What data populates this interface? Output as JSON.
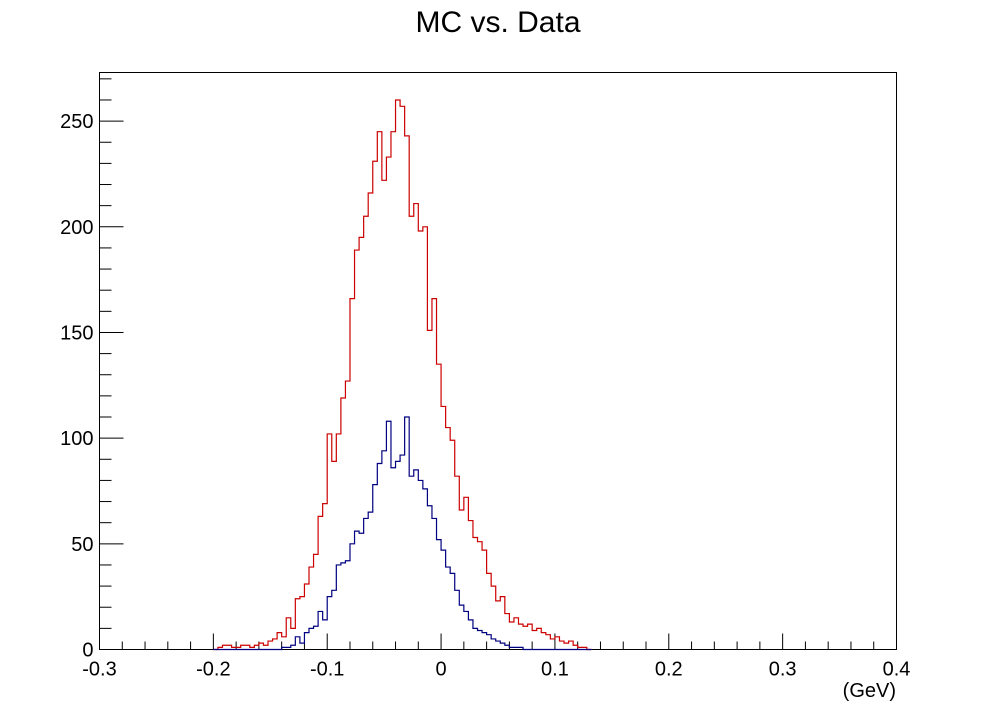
{
  "chart_data": {
    "type": "histogram",
    "title": "MC vs. Data",
    "xlabel": "(GeV)",
    "ylabel": "",
    "xlim": [
      -0.3,
      0.4
    ],
    "ylim": [
      0,
      273
    ],
    "x_ticks": [
      -0.3,
      -0.2,
      -0.1,
      0,
      0.1,
      0.2,
      0.3,
      0.4
    ],
    "x_tick_labels": [
      "-0.3",
      "-0.2",
      "-0.1",
      "0",
      "0.1",
      "0.2",
      "0.3",
      "0.4"
    ],
    "y_ticks": [
      0,
      50,
      100,
      150,
      200,
      250
    ],
    "y_tick_labels": [
      "0",
      "50",
      "100",
      "150",
      "200",
      "250"
    ],
    "grid": false,
    "legend": "none",
    "bin_width": 0.004,
    "series": [
      {
        "color": "#cc0000",
        "bin_edges_start": -0.2,
        "values": [
          0,
          1,
          2,
          2,
          1,
          1,
          2,
          2,
          1,
          2,
          3,
          2,
          4,
          5,
          8,
          6,
          15,
          10,
          24,
          25,
          31,
          39,
          45,
          63,
          69,
          102,
          89,
          102,
          119,
          127,
          166,
          189,
          195,
          205,
          216,
          231,
          245,
          222,
          233,
          245,
          260,
          257,
          243,
          205,
          211,
          198,
          200,
          151,
          166,
          135,
          115,
          105,
          99,
          82,
          66,
          72,
          61,
          53,
          51,
          47,
          36,
          30,
          23,
          25,
          17,
          13,
          15,
          12,
          11,
          12,
          9,
          10,
          8,
          7,
          5,
          6,
          4,
          3,
          4,
          2,
          1,
          1,
          0
        ],
        "legend_label": ""
      },
      {
        "color": "#000080",
        "bin_edges_start": -0.2,
        "values": [
          0,
          0,
          0,
          0,
          0,
          0,
          0,
          0,
          0,
          0,
          0,
          0,
          0,
          0,
          0,
          1,
          1,
          2,
          6,
          3,
          8,
          10,
          11,
          18,
          14,
          25,
          28,
          40,
          41,
          42,
          50,
          56,
          55,
          62,
          65,
          78,
          88,
          94,
          108,
          86,
          89,
          92,
          110,
          82,
          85,
          80,
          76,
          68,
          62,
          52,
          47,
          39,
          36,
          28,
          21,
          18,
          14,
          10,
          9,
          8,
          7,
          5,
          4,
          3,
          2,
          1,
          1,
          1,
          0,
          0,
          0,
          0,
          0,
          0,
          0,
          0,
          0,
          0,
          0,
          0,
          0,
          0,
          0
        ],
        "legend_label": ""
      }
    ]
  }
}
